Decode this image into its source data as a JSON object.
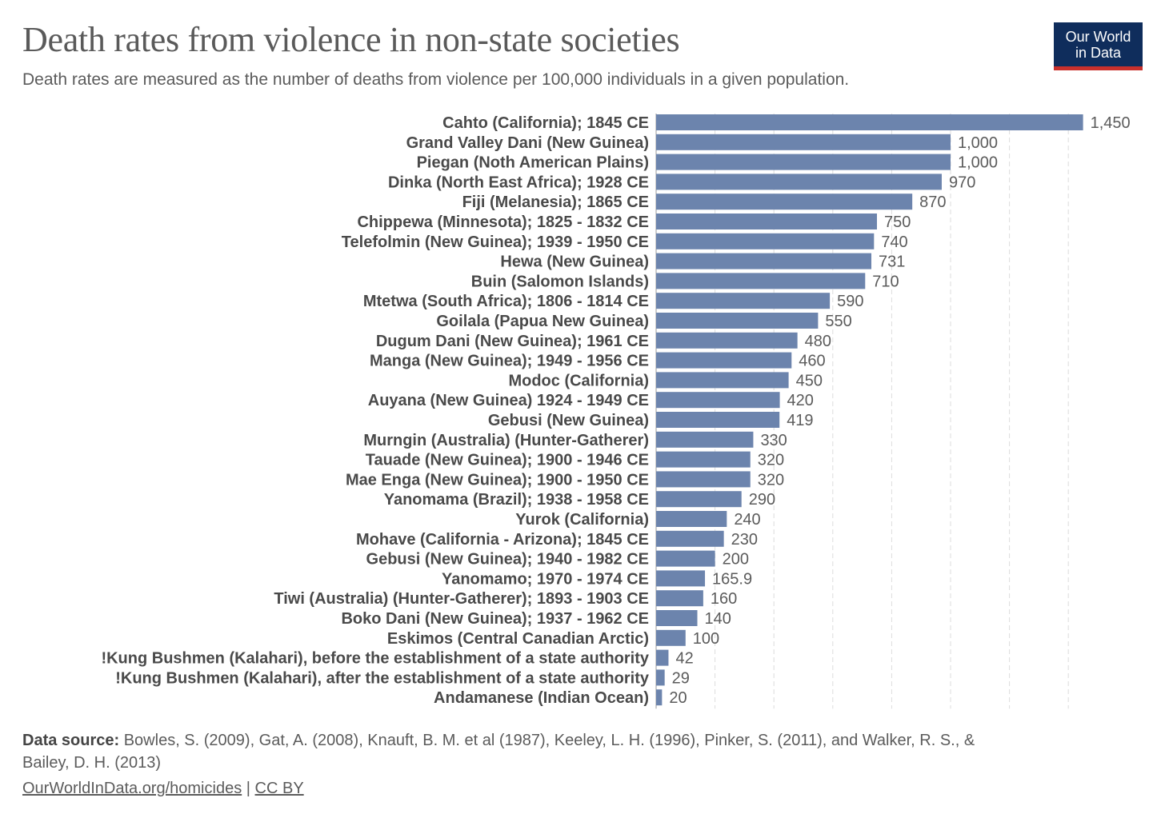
{
  "header": {
    "title": "Death rates from violence in non-state societies",
    "subtitle": "Death rates are measured as the number of deaths from violence per 100,000 individuals in a given population.",
    "logo_line1": "Our World",
    "logo_line2": "in Data"
  },
  "footer": {
    "source_label": "Data source:",
    "source_text": "Bowles, S. (2009), Gat, A. (2008), Knauft, B. M. et al (1987), Keeley, L. H. (1996), Pinker, S. (2011), and Walker, R. S., &",
    "source_text2": "Bailey, D. H. (2013)",
    "link": "OurWorldInData.org/homicides",
    "separator": "|",
    "license": "CC BY"
  },
  "colors": {
    "bar": "#6c84ad",
    "grid": "#dddddd"
  },
  "chart_data": {
    "type": "bar",
    "orientation": "horizontal",
    "title": "Death rates from violence in non-state societies",
    "xlabel": "",
    "ylabel": "",
    "xlim": [
      0,
      1450
    ],
    "grid": true,
    "grid_step": 200,
    "categories": [
      "Cahto (California); 1845 CE",
      "Grand Valley Dani (New Guinea)",
      "Piegan (Noth American Plains)",
      "Dinka (North East Africa); 1928 CE",
      "Fiji (Melanesia); 1865 CE",
      "Chippewa (Minnesota); 1825 - 1832 CE",
      "Telefolmin (New Guinea); 1939 - 1950 CE",
      "Hewa (New Guinea)",
      "Buin (Salomon Islands)",
      "Mtetwa (South Africa); 1806 - 1814 CE",
      "Goilala (Papua New Guinea)",
      "Dugum Dani (New Guinea); 1961 CE",
      "Manga (New Guinea); 1949 - 1956 CE",
      "Modoc (California)",
      "Auyana (New Guinea) 1924 - 1949 CE",
      "Gebusi (New Guinea)",
      "Murngin (Australia) (Hunter-Gatherer)",
      "Tauade (New Guinea); 1900 - 1946 CE",
      "Mae Enga (New Guinea); 1900 - 1950 CE",
      "Yanomama (Brazil); 1938 - 1958 CE",
      "Yurok (California)",
      "Mohave (California - Arizona); 1845 CE",
      "Gebusi (New Guinea); 1940 - 1982 CE",
      "Yanomamo; 1970 - 1974 CE",
      "Tiwi (Australia) (Hunter-Gatherer); 1893 - 1903 CE",
      "Boko Dani (New Guinea); 1937 - 1962 CE",
      "Eskimos (Central Canadian Arctic)",
      "!Kung Bushmen (Kalahari), before the establishment of a state authority",
      "!Kung Bushmen (Kalahari), after the establishment of a state authority",
      "Andamanese (Indian Ocean)"
    ],
    "values": [
      1450,
      1000,
      1000,
      970,
      870,
      750,
      740,
      731,
      710,
      590,
      550,
      480,
      460,
      450,
      420,
      419,
      330,
      320,
      320,
      290,
      240,
      230,
      200,
      165.9,
      160,
      140,
      100,
      42,
      29,
      20
    ],
    "value_labels": [
      "1,450",
      "1,000",
      "1,000",
      "970",
      "870",
      "750",
      "740",
      "731",
      "710",
      "590",
      "550",
      "480",
      "460",
      "450",
      "420",
      "419",
      "330",
      "320",
      "320",
      "290",
      "240",
      "230",
      "200",
      "165.9",
      "160",
      "140",
      "100",
      "42",
      "29",
      "20"
    ]
  }
}
